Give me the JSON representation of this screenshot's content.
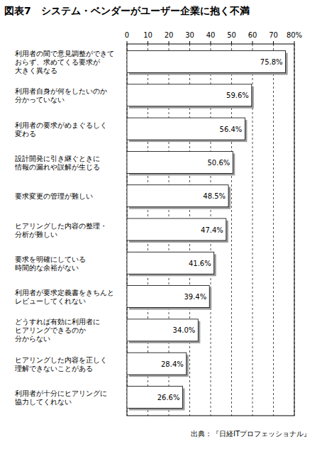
{
  "chart_data": {
    "type": "bar",
    "orientation": "horizontal",
    "title": "図表7　システム・ベンダーがユーザー企業に抱く不満",
    "source": "出典：『日経ITプロフェッショナル』",
    "categories": [
      "利用者の間で意見調整ができて\nおらず、求めてくる要求が\n大きく異なる",
      "利用者自身が何をしたいのか\n分かっていない",
      "利用者の要求がめまぐるしく\n変わる",
      "設計開発に引き継ぐときに\n情報の漏れや誤解が生じる",
      "要求変更の管理が難しい",
      "ヒアリングした内容の整理・\n分析が難しい",
      "要求を明確にしている\n時間的な余裕がない",
      "利用者が要求定義書をきちんと\nレビューしてくれない",
      "どうすれば有効に利用者に\nヒアリングできるのか\n分からない",
      "ヒアリングした内容を正しく\n理解できないことがある",
      "利用者が十分にヒアリングに\n協力してくれない"
    ],
    "values": [
      75.8,
      59.6,
      56.4,
      50.6,
      48.5,
      47.4,
      41.6,
      39.4,
      34.0,
      28.4,
      26.6
    ],
    "value_labels": [
      "75.8%",
      "59.6%",
      "56.4%",
      "50.6%",
      "48.5%",
      "47.4%",
      "41.6%",
      "39.4%",
      "34.0%",
      "28.4%",
      "26.6%"
    ],
    "data_labels": true,
    "color": "#ffffff",
    "xlim": [
      0,
      80
    ],
    "xticks": [
      0,
      10,
      20,
      30,
      40,
      50,
      60,
      70,
      {
        "value": 80,
        "label": "80%"
      }
    ],
    "grid": true
  }
}
